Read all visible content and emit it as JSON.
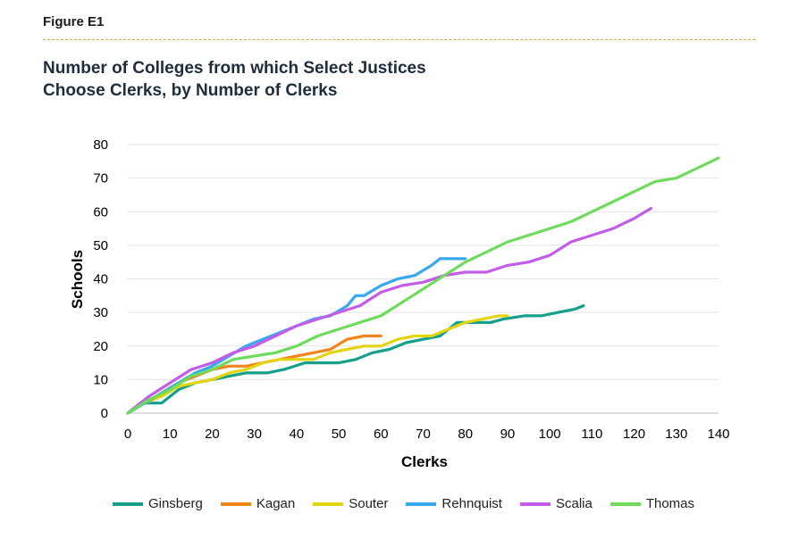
{
  "figure_label": "Figure E1",
  "title_line1": "Number of Colleges from which Select Justices",
  "title_line2": "Choose Clerks, by Number of Clerks",
  "chart_data": {
    "type": "line",
    "xlabel": "Clerks",
    "ylabel": "Schools",
    "xlim": [
      0,
      140
    ],
    "ylim": [
      0,
      80
    ],
    "x_ticks": [
      0,
      10,
      20,
      30,
      40,
      50,
      60,
      70,
      80,
      90,
      100,
      110,
      120,
      130,
      140
    ],
    "y_ticks": [
      0,
      10,
      20,
      30,
      40,
      50,
      60,
      70,
      80
    ],
    "grid": "horizontal",
    "legend": "bottom",
    "series": [
      {
        "name": "Ginsberg",
        "color": "#14a08a",
        "x": [
          0,
          3,
          8,
          12,
          16,
          20,
          24,
          28,
          33,
          37,
          42,
          46,
          50,
          54,
          58,
          62,
          66,
          70,
          74,
          78,
          82,
          86,
          89,
          94,
          98,
          102,
          106,
          108
        ],
        "y": [
          0,
          3,
          3,
          7,
          9,
          10,
          11,
          12,
          12,
          13,
          15,
          15,
          15,
          16,
          18,
          19,
          21,
          22,
          23,
          27,
          27,
          27,
          28,
          29,
          29,
          30,
          31,
          32
        ]
      },
      {
        "name": "Kagan",
        "color": "#f08519",
        "x": [
          0,
          4,
          8,
          12,
          16,
          20,
          24,
          28,
          32,
          36,
          40,
          44,
          48,
          52,
          56,
          60
        ],
        "y": [
          0,
          3,
          6,
          9,
          11,
          13,
          14,
          14,
          15,
          16,
          17,
          18,
          19,
          22,
          23,
          23
        ]
      },
      {
        "name": "Souter",
        "color": "#e3d411",
        "x": [
          0,
          4,
          8,
          12,
          16,
          20,
          24,
          28,
          32,
          36,
          40,
          44,
          48,
          52,
          56,
          60,
          64,
          68,
          72,
          76,
          80,
          84,
          88,
          90
        ],
        "y": [
          0,
          3,
          5,
          8,
          9,
          10,
          12,
          13,
          15,
          16,
          16,
          16,
          18,
          19,
          20,
          20,
          22,
          23,
          23,
          25,
          27,
          28,
          29,
          29
        ]
      },
      {
        "name": "Rehnquist",
        "color": "#38a8ee",
        "x": [
          0,
          4,
          8,
          12,
          16,
          20,
          24,
          28,
          32,
          36,
          40,
          44,
          48,
          52,
          54,
          56,
          60,
          64,
          68,
          72,
          74,
          78,
          80
        ],
        "y": [
          0,
          3,
          6,
          9,
          12,
          14,
          17,
          20,
          22,
          24,
          26,
          28,
          29,
          32,
          35,
          35,
          38,
          40,
          41,
          44,
          46,
          46,
          46
        ]
      },
      {
        "name": "Scalia",
        "color": "#c35ce8",
        "x": [
          0,
          5,
          10,
          15,
          20,
          25,
          30,
          35,
          40,
          45,
          50,
          55,
          60,
          65,
          70,
          75,
          80,
          85,
          90,
          95,
          100,
          105,
          110,
          115,
          120,
          124
        ],
        "y": [
          0,
          5,
          9,
          13,
          15,
          18,
          20,
          23,
          26,
          28,
          30,
          32,
          36,
          38,
          39,
          41,
          42,
          42,
          44,
          45,
          47,
          51,
          53,
          55,
          58,
          61
        ]
      },
      {
        "name": "Thomas",
        "color": "#6edb5c",
        "x": [
          0,
          5,
          10,
          15,
          20,
          25,
          30,
          35,
          40,
          45,
          50,
          55,
          60,
          65,
          70,
          75,
          80,
          85,
          90,
          95,
          100,
          105,
          110,
          115,
          120,
          125,
          130,
          135,
          140
        ],
        "y": [
          0,
          4,
          7,
          11,
          13,
          16,
          17,
          18,
          20,
          23,
          25,
          27,
          29,
          33,
          37,
          41,
          45,
          48,
          51,
          53,
          55,
          57,
          60,
          63,
          66,
          69,
          70,
          73,
          76
        ]
      }
    ]
  }
}
